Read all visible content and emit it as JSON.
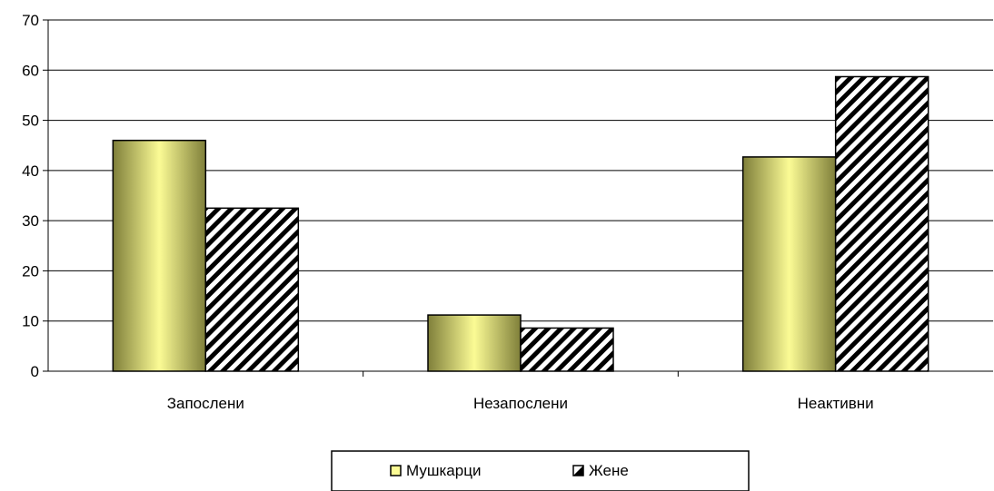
{
  "chart_data": {
    "type": "bar",
    "categories": [
      "Запослени",
      "Незапослени",
      "Неактивни"
    ],
    "series": [
      {
        "name": "Мушкарци",
        "values": [
          46,
          11.2,
          42.7
        ],
        "style": "gradient",
        "color": "#fbfb95",
        "edge_color": "#7f7f3a"
      },
      {
        "name": "Жене",
        "values": [
          32.5,
          8.6,
          58.7
        ],
        "style": "hatched",
        "color": "#000000"
      }
    ],
    "ylim": [
      0,
      70
    ],
    "yticks": [
      "0",
      "10",
      "20",
      "30",
      "40",
      "50",
      "60",
      "70"
    ],
    "grid": true,
    "legend_position": "bottom-center",
    "title": "",
    "xlabel": "",
    "ylabel": ""
  }
}
